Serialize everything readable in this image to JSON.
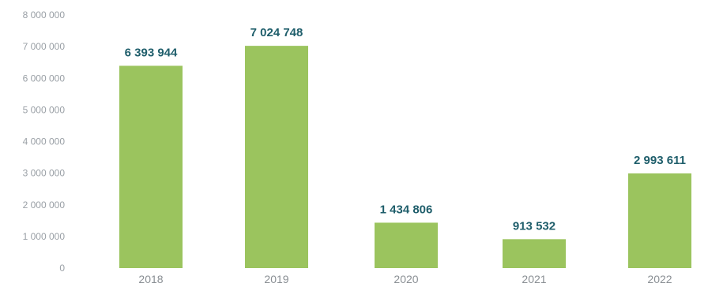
{
  "chart_data": {
    "type": "bar",
    "title": "",
    "xlabel": "",
    "ylabel": "",
    "categories": [
      "2018",
      "2019",
      "2020",
      "2021",
      "2022"
    ],
    "values": [
      6393944,
      7024748,
      1434806,
      913532,
      2993611
    ],
    "value_labels": [
      "6 393 944",
      "7 024 748",
      "1 434 806",
      "913 532",
      "2 993 611"
    ],
    "ylim": [
      0,
      8000000
    ],
    "yticks": [
      0,
      1000000,
      2000000,
      3000000,
      4000000,
      5000000,
      6000000,
      7000000,
      8000000
    ],
    "ytick_labels": [
      "0",
      "1 000 000",
      "2 000 000",
      "3 000 000",
      "4 000 000",
      "5 000 000",
      "6 000 000",
      "7 000 000",
      "8 000 000"
    ],
    "grid": false,
    "legend": "none",
    "colors": {
      "bar": "#9bc45e",
      "data_label": "#1f5e6b",
      "tick_label": "#9aa0a6"
    }
  }
}
